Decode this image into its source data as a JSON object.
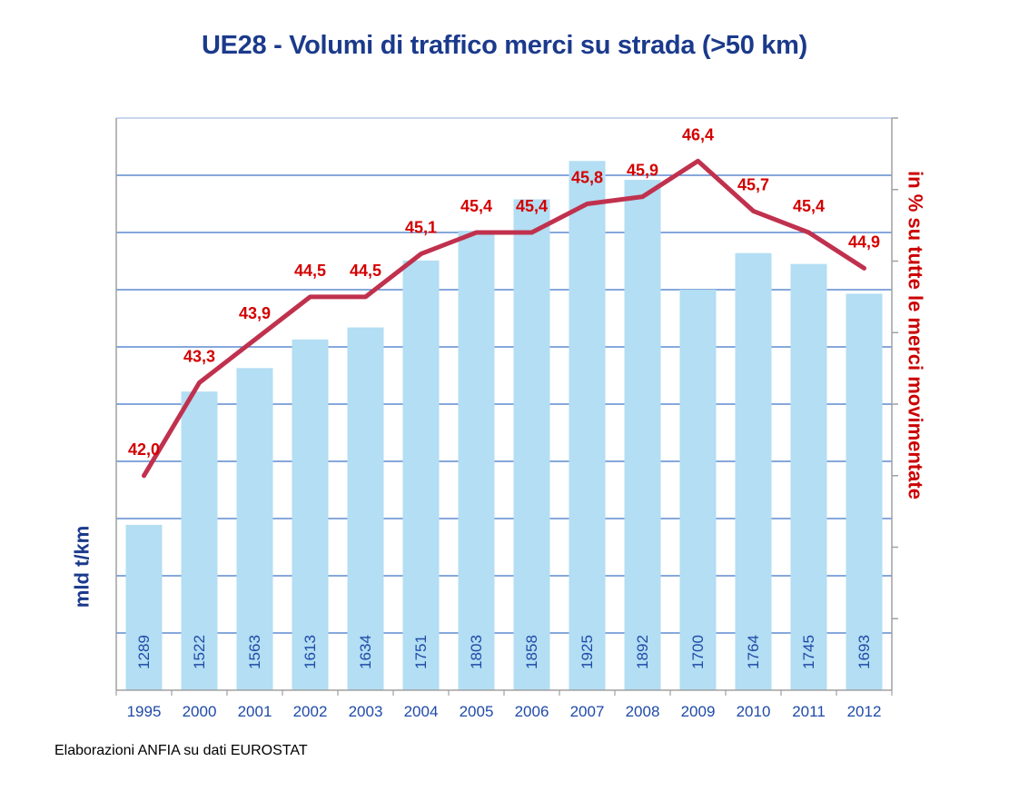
{
  "title": "UE28 - Volumi di traffico merci su strada (>50 km)",
  "source": "Elaborazioni ANFIA  su dati EUROSTAT",
  "chart_data": {
    "type": "bar",
    "categories": [
      "1995",
      "2000",
      "2001",
      "2002",
      "2003",
      "2004",
      "2005",
      "2006",
      "2007",
      "2008",
      "2009",
      "2010",
      "2011",
      "2012"
    ],
    "series": [
      {
        "type": "bar",
        "axis": "left",
        "values": [
          1289,
          1522,
          1563,
          1613,
          1634,
          1751,
          1803,
          1858,
          1925,
          1892,
          1700,
          1764,
          1745,
          1693
        ],
        "value_labels": [
          "1289",
          "1522",
          "1563",
          "1613",
          "1634",
          "1751",
          "1803",
          "1858",
          "1925",
          "1892",
          "1700",
          "1764",
          "1745",
          "1693"
        ],
        "color": "#b3def3"
      },
      {
        "type": "line",
        "axis": "right",
        "values": [
          42.0,
          43.3,
          43.9,
          44.5,
          44.5,
          45.1,
          45.4,
          45.4,
          45.8,
          45.9,
          46.4,
          45.7,
          45.4,
          44.9
        ],
        "value_labels": [
          "42,0",
          "43,3",
          "43,9",
          "44,5",
          "44,5",
          "45,1",
          "45,4",
          "45,4",
          "45,8",
          "45,9",
          "46,4",
          "45,7",
          "45,4",
          "44,9"
        ],
        "color": "#c0314e",
        "label_color": "#d40000"
      }
    ],
    "ylabel": "mld t/km",
    "y2label": "in % su tutte le merci movimentate",
    "ylim": [
      1000,
      2000
    ],
    "y2lim": [
      39,
      47
    ],
    "grid": true,
    "tick_labels_visible": false,
    "colors": {
      "title": "#1b3a8c",
      "axis_label": "#1b3a8c",
      "y2label": "#cc0000",
      "grid": "#3f73c8",
      "category_labels": "#1f4aa8",
      "bar_labels": "#1f4aa8"
    }
  }
}
